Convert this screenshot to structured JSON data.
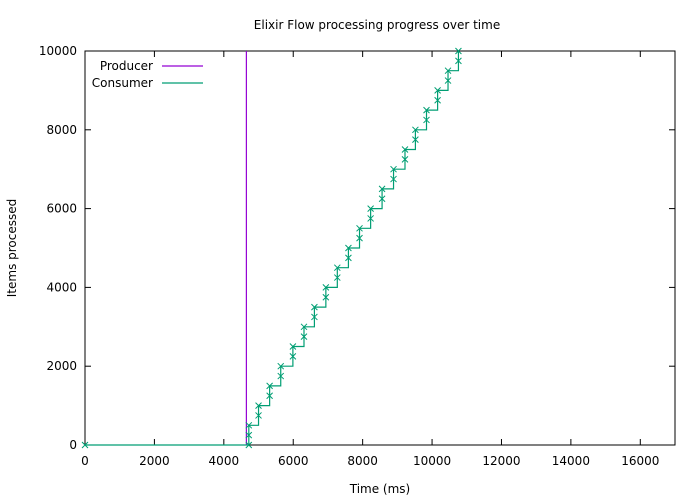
{
  "chart_data": {
    "type": "line",
    "title": "Elixir Flow processing progress over time",
    "xlabel": "Time (ms)",
    "ylabel": "Items processed",
    "xlim": [
      0,
      17000
    ],
    "ylim": [
      0,
      10000
    ],
    "xticks": [
      0,
      2000,
      4000,
      6000,
      8000,
      10000,
      12000,
      14000,
      16000
    ],
    "yticks": [
      0,
      2000,
      4000,
      6000,
      8000,
      10000
    ],
    "grid": false,
    "legend_position": "top-left",
    "series": [
      {
        "name": "Producer",
        "color": "#9400d3",
        "marker": "none",
        "x": [
          4650,
          4650
        ],
        "y": [
          0,
          10000
        ]
      },
      {
        "name": "Consumer",
        "color": "#009e73",
        "marker": "x",
        "x": [
          0,
          4720,
          4720,
          4720,
          5000,
          5000,
          5320,
          5320,
          5640,
          5640,
          5990,
          5990,
          6310,
          6310,
          6610,
          6610,
          6940,
          6940,
          7270,
          7270,
          7590,
          7590,
          7910,
          7910,
          8230,
          8230,
          8560,
          8560,
          8890,
          8890,
          9220,
          9220,
          9520,
          9520,
          9840,
          9840,
          10160,
          10160,
          10460,
          10460,
          10760,
          10760
        ],
        "y": [
          0,
          0,
          250,
          500,
          750,
          1000,
          1250,
          1500,
          1750,
          2000,
          2250,
          2500,
          2750,
          3000,
          3250,
          3500,
          3750,
          4000,
          4250,
          4500,
          4750,
          5000,
          5250,
          5500,
          5750,
          6000,
          6250,
          6500,
          6750,
          7000,
          7250,
          7500,
          7750,
          8000,
          8250,
          8500,
          8750,
          9000,
          9250,
          9500,
          9750,
          10000
        ]
      }
    ]
  }
}
